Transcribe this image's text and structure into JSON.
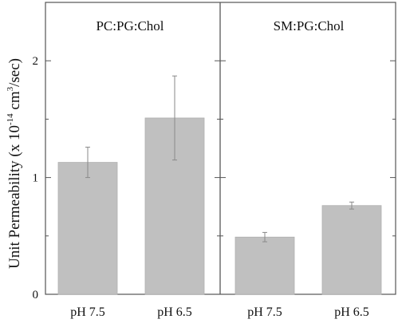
{
  "chart_data": {
    "type": "bar",
    "ylabel": {
      "main": "Unit Permeability  (x 10",
      "exp": "-14",
      "mid": " cm",
      "exp2": "3",
      "tail": "/sec)"
    },
    "ylim": [
      0,
      2.5
    ],
    "yticks": [
      "0",
      "1",
      "2"
    ],
    "grid": false,
    "bar_color": "#c0c0c0",
    "panels": [
      {
        "title": "PC:PG:Chol",
        "categories": [
          "pH 7.5",
          "pH 6.5"
        ],
        "values": [
          1.13,
          1.51
        ],
        "errors": [
          0.13,
          0.36
        ]
      },
      {
        "title": "SM:PG:Chol",
        "categories": [
          "pH 7.5",
          "pH 6.5"
        ],
        "values": [
          0.49,
          0.76
        ],
        "errors": [
          0.04,
          0.03
        ]
      }
    ]
  }
}
